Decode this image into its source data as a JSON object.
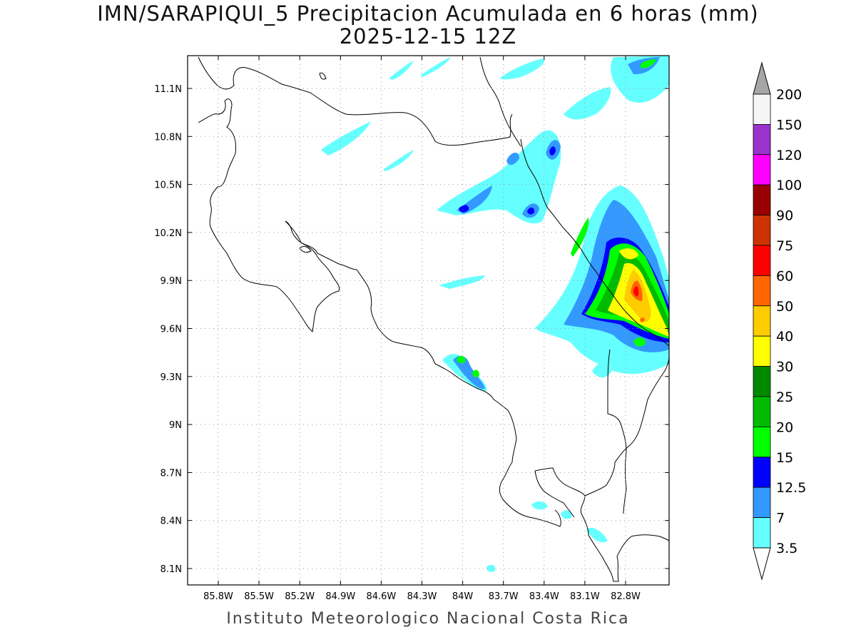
{
  "title": {
    "line1": "IMN/SARAPIQUI_5 Precipitacion Acumulada en 6 horas (mm)",
    "line2": "2025-12-15 12Z"
  },
  "footer": "Instituto Meteorologico Nacional Costa Rica",
  "map": {
    "lon_range": [
      -86.0,
      -82.4
    ],
    "lat_range": [
      8.0,
      11.2
    ],
    "x_ticks": [
      "85.8W",
      "85.5W",
      "85.2W",
      "84.9W",
      "84.6W",
      "84.3W",
      "84W",
      "83.7W",
      "83.4W",
      "83.1W",
      "82.8W"
    ],
    "y_ticks": [
      "11.1N",
      "10.8N",
      "10.5N",
      "10.2N",
      "9.9N",
      "9.6N",
      "9.3N",
      "9N",
      "8.7N",
      "8.4N",
      "8.1N"
    ],
    "grid": "dotted"
  },
  "colorbar": {
    "labels": [
      "200",
      "150",
      "120",
      "100",
      "90",
      "75",
      "60",
      "50",
      "40",
      "30",
      "25",
      "20",
      "15",
      "12.5",
      "7",
      "3.5"
    ],
    "colors": [
      "#a6a6a6",
      "#f5f5f5",
      "#9933cc",
      "#ff00ff",
      "#990000",
      "#cc3300",
      "#ff0000",
      "#ff6600",
      "#ffcc00",
      "#ffff00",
      "#008800",
      "#00bb00",
      "#00ff00",
      "#0000ff",
      "#3399ff",
      "#66ffff"
    ]
  }
}
